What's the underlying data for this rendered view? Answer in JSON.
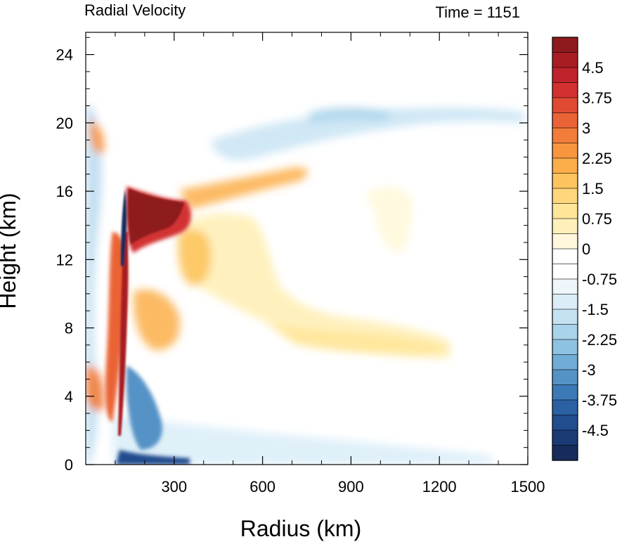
{
  "chart_data": {
    "type": "heatmap",
    "title_left": "Radial Velocity",
    "title_right": "Time = 1151",
    "xlabel": "Radius (km)",
    "ylabel": "Height (km)",
    "xlim": [
      0,
      1500
    ],
    "ylim": [
      0,
      25.3
    ],
    "x_ticks": [
      300,
      600,
      900,
      1200,
      1500
    ],
    "y_ticks": [
      0,
      4,
      8,
      12,
      16,
      20,
      24
    ],
    "colorbar": {
      "range": [
        -5.25,
        5.25
      ],
      "labels": [
        "4.5",
        "3.75",
        "3",
        "2.25",
        "1.5",
        "0.75",
        "0",
        "-0.75",
        "-1.5",
        "-2.25",
        "-3",
        "-3.75",
        "-4.5"
      ],
      "label_values": [
        4.5,
        3.75,
        3,
        2.25,
        1.5,
        0.75,
        0,
        -0.75,
        -1.5,
        -2.25,
        -3,
        -3.75,
        -4.5
      ],
      "colors": [
        "#8e1a1d",
        "#a81d23",
        "#c0232b",
        "#d33030",
        "#e04a32",
        "#ea6336",
        "#f27c3a",
        "#f8963f",
        "#fbae49",
        "#fdc45e",
        "#fed67c",
        "#ffe59a",
        "#fff0bb",
        "#fff8dc",
        "#ffffff",
        "#ffffff",
        "#eef6fb",
        "#dbeef8",
        "#c4e2f2",
        "#a9d2eb",
        "#8ec2e2",
        "#70acd6",
        "#5593c6",
        "#3c7ab7",
        "#2b61a4",
        "#214c8e",
        "#1a3a75",
        "#172b5c"
      ]
    },
    "features": [
      {
        "x": 230,
        "y": 14,
        "value": 5.2
      },
      {
        "x": 145,
        "y": 15,
        "value": -5.2
      },
      {
        "x": 140,
        "y": 5,
        "value": 5.0
      },
      {
        "x": 230,
        "y": 0.4,
        "value": -4.5
      },
      {
        "x": 400,
        "y": 16.5,
        "value": 3.0
      },
      {
        "x": 390,
        "y": 11,
        "value": 1.8
      },
      {
        "x": 800,
        "y": 7,
        "value": 1.5
      },
      {
        "x": 250,
        "y": 8.5,
        "value": 2.5
      },
      {
        "x": 60,
        "y": 19.5,
        "value": 3.0
      },
      {
        "x": 50,
        "y": 4.5,
        "value": 3.2
      },
      {
        "x": 80,
        "y": 16,
        "value": -1.5
      },
      {
        "x": 220,
        "y": 3.5,
        "value": -3.0
      },
      {
        "x": 800,
        "y": 20.2,
        "value": -1.0
      },
      {
        "x": 1100,
        "y": 14,
        "value": 0.6
      }
    ]
  }
}
